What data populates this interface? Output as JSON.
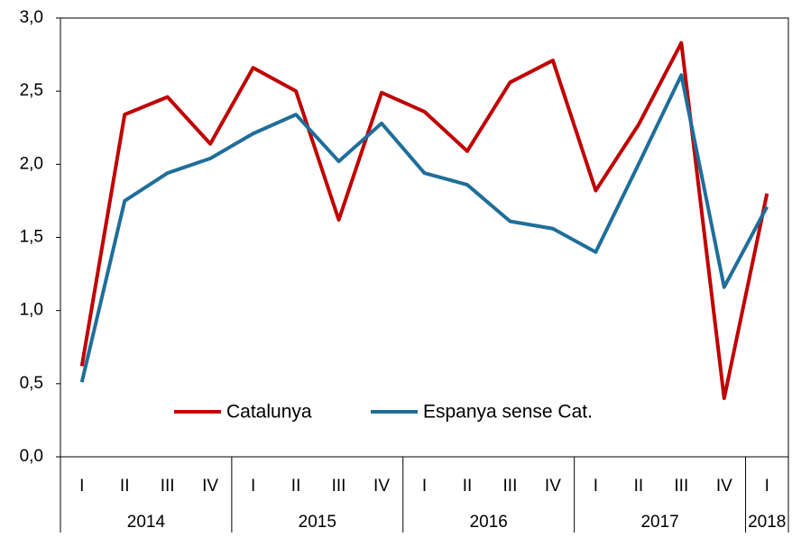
{
  "chart_data": {
    "type": "line",
    "groups": [
      {
        "name": "2014",
        "categories": [
          "I",
          "II",
          "III",
          "IV"
        ]
      },
      {
        "name": "2015",
        "categories": [
          "I",
          "II",
          "III",
          "IV"
        ]
      },
      {
        "name": "2016",
        "categories": [
          "I",
          "II",
          "III",
          "IV"
        ]
      },
      {
        "name": "2017",
        "categories": [
          "I",
          "II",
          "III",
          "IV"
        ]
      },
      {
        "name": "2018",
        "categories": [
          "I"
        ]
      }
    ],
    "series": [
      {
        "name": "Catalunya",
        "color": "#c00000",
        "values": [
          0.62,
          2.34,
          2.46,
          2.14,
          2.66,
          2.5,
          1.62,
          2.49,
          2.36,
          2.09,
          2.56,
          2.71,
          1.82,
          2.27,
          2.83,
          0.4,
          1.8
        ]
      },
      {
        "name": "Espanya sense Cat.",
        "color": "#1f6e9a",
        "values": [
          0.51,
          1.75,
          1.94,
          2.04,
          2.21,
          2.34,
          2.02,
          2.28,
          1.94,
          1.86,
          1.61,
          1.56,
          1.4,
          2.0,
          2.61,
          1.16,
          1.71
        ]
      }
    ],
    "ylim": [
      0,
      3
    ],
    "yticks": [
      {
        "value": 0,
        "label": "0,0"
      },
      {
        "value": 0.5,
        "label": "0,5"
      },
      {
        "value": 1,
        "label": "1,0"
      },
      {
        "value": 1.5,
        "label": "1,5"
      },
      {
        "value": 2,
        "label": "2,0"
      },
      {
        "value": 2.5,
        "label": "2,5"
      },
      {
        "value": 3,
        "label": "3,0"
      }
    ],
    "legend": "bottom"
  }
}
